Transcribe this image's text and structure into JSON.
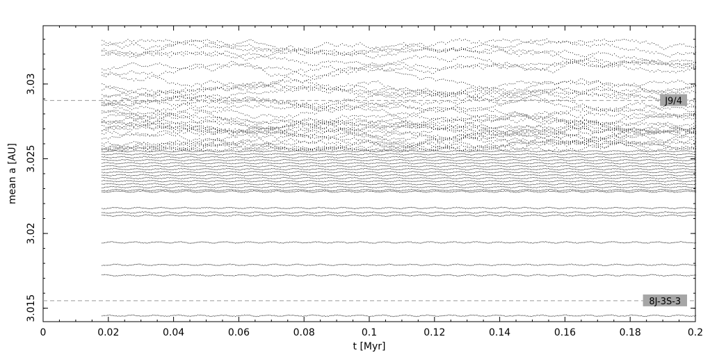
{
  "chart_data": {
    "type": "scatter",
    "title": "",
    "xlabel": "t [Myr]",
    "ylabel": "mean a [AU]",
    "xlim": [
      0,
      0.2
    ],
    "ylim": [
      3.0141,
      3.0339
    ],
    "xticks": [
      0,
      0.02,
      0.04,
      0.06,
      0.08,
      0.1,
      0.12,
      0.14,
      0.16,
      0.18,
      0.2
    ],
    "xtick_labels": [
      "0",
      "0.02",
      "0.04",
      "0.06",
      "0.08",
      "0.1",
      "0.12",
      "0.14",
      "0.16",
      "0.18",
      "0.2"
    ],
    "yticks": [
      3.015,
      3.02,
      3.025,
      3.03
    ],
    "ytick_labels": [
      "3.015",
      "3.02",
      "3.025",
      "3.03"
    ],
    "grid": false,
    "data_x_range": [
      0.018,
      0.2
    ],
    "resonances": [
      {
        "label": "J9/4",
        "a": 3.0289,
        "style": "dashed",
        "color": "#999999"
      },
      {
        "label": "8J-3S-3",
        "a": 3.0155,
        "style": "dashed",
        "color": "#999999"
      }
    ],
    "stable_tracks_a": [
      3.0145,
      3.0172,
      3.0179,
      3.0194,
      3.0212,
      3.0214,
      3.0217,
      3.0228,
      3.0229,
      3.0231,
      3.0233,
      3.0235,
      3.0237,
      3.0239,
      3.0241,
      3.0243,
      3.0245,
      3.0247,
      3.0249,
      3.0251,
      3.0253,
      3.0255
    ],
    "chaotic_band": {
      "a_min": 3.0255,
      "a_max": 3.033
    }
  },
  "colors": {
    "points": "#000000",
    "resonance_line": "#999999",
    "label_bg": "#a6a6a6",
    "axes": "#000000"
  }
}
